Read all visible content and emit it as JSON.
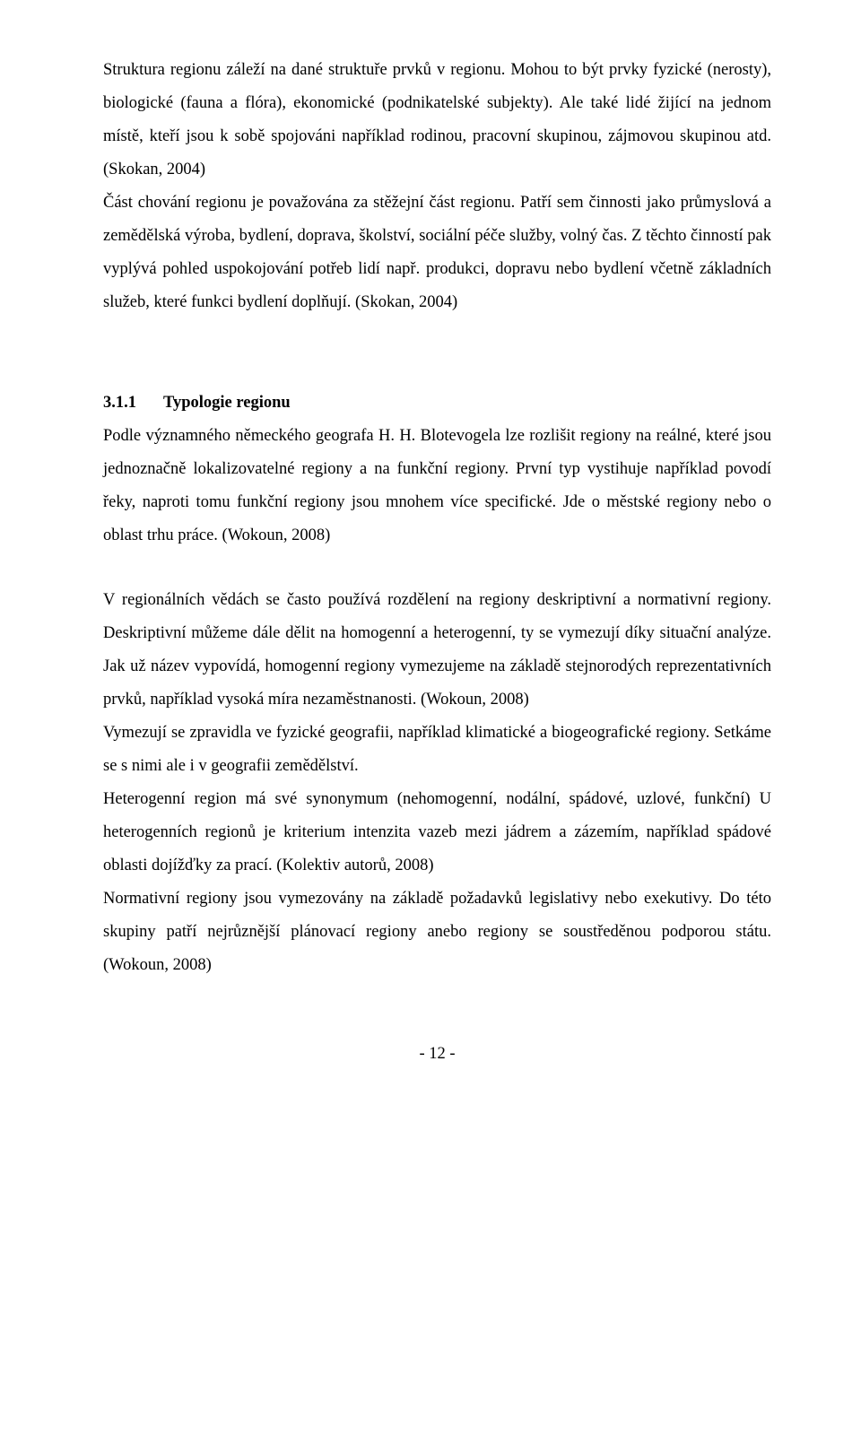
{
  "para1": "Struktura regionu záleží na dané struktuře prvků v regionu. Mohou to být prvky fyzické (nerosty), biologické (fauna a flóra), ekonomické (podnikatelské subjekty). Ale také lidé žijící na jednom místě, kteří jsou k sobě spojováni například rodinou, pracovní skupinou, zájmovou skupinou atd. (Skokan, 2004)",
  "para2": "Část chování regionu je považována za stěžejní část regionu. Patří sem činnosti jako průmyslová a zemědělská výroba, bydlení, doprava, školství, sociální péče služby, volný čas. Z těchto činností pak vyplývá pohled uspokojování potřeb lidí např. produkci, dopravu nebo bydlení včetně základních služeb, které funkci bydlení doplňují. (Skokan, 2004)",
  "sectionNumber": "3.1.1",
  "sectionTitle": "Typologie regionu",
  "para3": "Podle významného německého geografa H. H. Blotevogela lze rozlišit regiony na reálné, které jsou jednoznačně lokalizovatelné regiony a na funkční regiony. První typ vystihuje například povodí řeky, naproti tomu funkční regiony jsou mnohem více specifické. Jde o městské regiony nebo o oblast trhu práce. (Wokoun, 2008)",
  "para4": "V regionálních vědách se často používá rozdělení na regiony deskriptivní a normativní regiony. Deskriptivní můžeme dále dělit na homogenní a heterogenní, ty se vymezují díky situační analýze. Jak už název vypovídá, homogenní regiony vymezujeme na základě stejnorodých reprezentativních prvků, například vysoká míra nezaměstnanosti. (Wokoun, 2008)",
  "para5": "Vymezují se zpravidla ve fyzické geografii, například klimatické a biogeografické regiony. Setkáme se s nimi ale i v geografii zemědělství.",
  "para6": "Heterogenní region má své synonymum (nehomogenní, nodální, spádové, uzlové, funkční) U heterogenních regionů je kriterium intenzita vazeb mezi jádrem a zázemím, například spádové oblasti dojížďky za prací. (Kolektiv autorů, 2008)",
  "para7": "Normativní regiony jsou vymezovány na základě požadavků legislativy nebo exekutivy. Do této skupiny patří nejrůznější plánovací regiony anebo regiony se soustředěnou podporou státu. (Wokoun, 2008)",
  "pageNumber": "- 12 -"
}
